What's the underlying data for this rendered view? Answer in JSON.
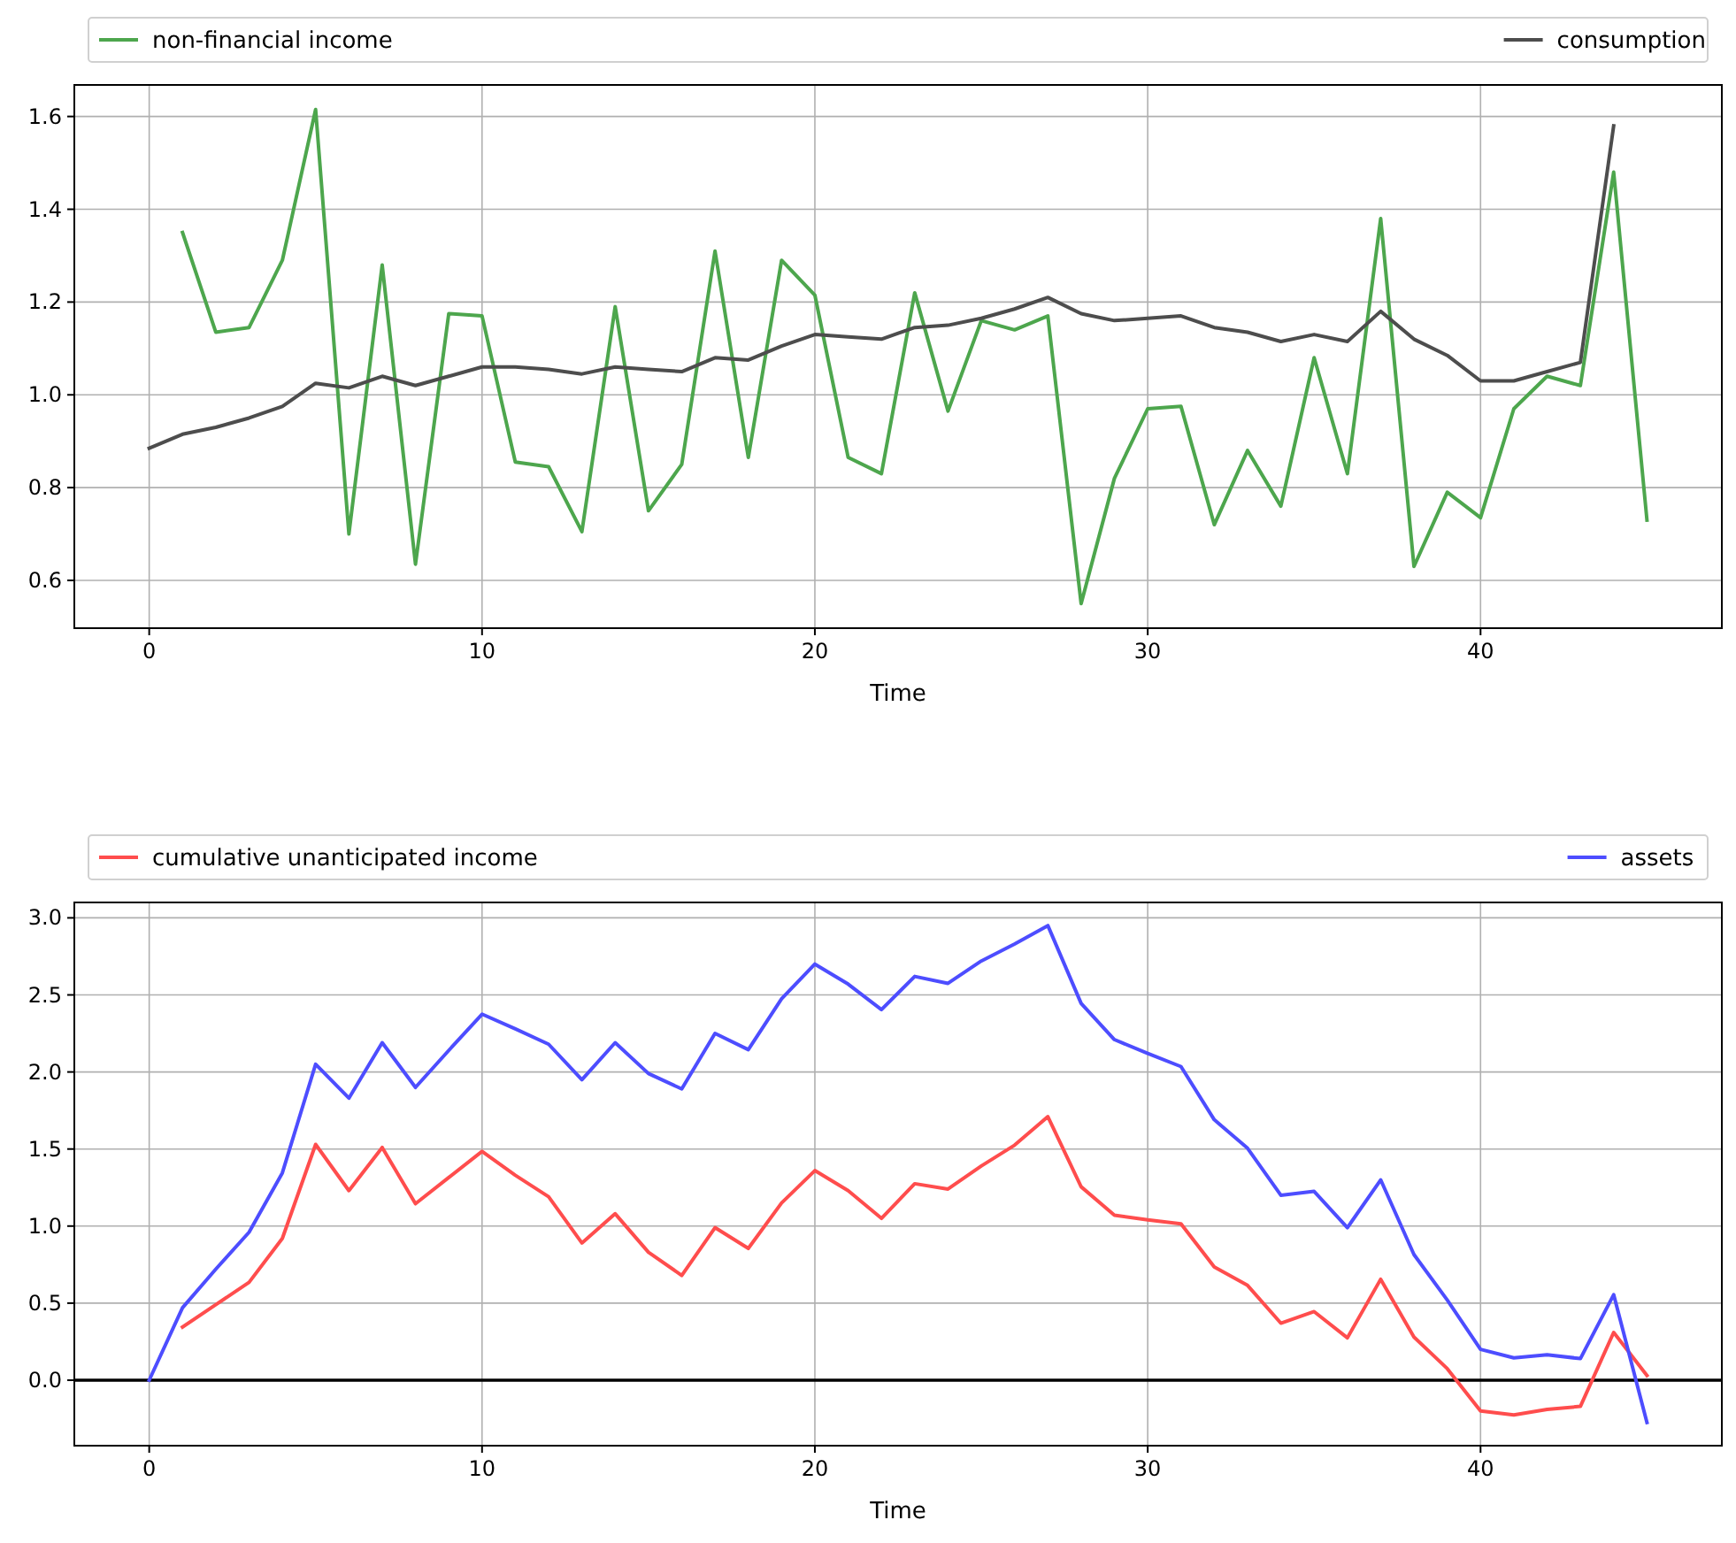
{
  "chart_data": [
    {
      "type": "line",
      "xlabel": "Time",
      "xlim": [
        -2.25,
        47.25
      ],
      "xticks": [
        0,
        10,
        20,
        30,
        40
      ],
      "ylim": [
        0.497,
        1.668
      ],
      "yticks": [
        {
          "value": 0.6,
          "label": "0.6"
        },
        {
          "value": 0.8,
          "label": "0.8"
        },
        {
          "value": 1.0,
          "label": "1.0"
        },
        {
          "value": 1.2,
          "label": "1.2"
        },
        {
          "value": 1.4,
          "label": "1.4"
        },
        {
          "value": 1.6,
          "label": "1.6"
        }
      ],
      "grid": true,
      "legend": "top",
      "series": [
        {
          "name": "non-financial income",
          "color": "#4da64d",
          "x": [
            1,
            2,
            3,
            4,
            5,
            6,
            7,
            8,
            9,
            10,
            11,
            12,
            13,
            14,
            15,
            16,
            17,
            18,
            19,
            20,
            21,
            22,
            23,
            24,
            25,
            26,
            27,
            28,
            29,
            30,
            31,
            32,
            33,
            34,
            35,
            36,
            37,
            38,
            39,
            40,
            41,
            42,
            43,
            44,
            45
          ],
          "values": [
            1.35,
            1.135,
            1.145,
            1.29,
            1.615,
            0.7,
            1.28,
            0.635,
            1.175,
            1.17,
            0.855,
            0.845,
            0.705,
            1.19,
            0.75,
            0.85,
            1.31,
            0.865,
            1.29,
            1.215,
            0.865,
            0.83,
            1.22,
            0.965,
            1.16,
            1.14,
            1.17,
            0.55,
            0.82,
            0.97,
            0.975,
            0.72,
            0.88,
            0.76,
            1.08,
            0.83,
            1.38,
            0.63,
            0.79,
            0.735,
            0.97,
            1.04,
            1.02,
            1.48,
            0.73
          ]
        },
        {
          "name": "consumption",
          "color": "#4d4d4d",
          "x": [
            0,
            1,
            2,
            3,
            4,
            5,
            6,
            7,
            8,
            9,
            10,
            11,
            12,
            13,
            14,
            15,
            16,
            17,
            18,
            19,
            20,
            21,
            22,
            23,
            24,
            25,
            26,
            27,
            28,
            29,
            30,
            31,
            32,
            33,
            34,
            35,
            36,
            37,
            38,
            39,
            40,
            41,
            42,
            43,
            44
          ],
          "values": [
            0.885,
            0.915,
            0.93,
            0.95,
            0.975,
            1.025,
            1.015,
            1.04,
            1.02,
            1.04,
            1.06,
            1.06,
            1.055,
            1.045,
            1.06,
            1.055,
            1.05,
            1.08,
            1.075,
            1.105,
            1.13,
            1.125,
            1.12,
            1.145,
            1.15,
            1.165,
            1.185,
            1.21,
            1.175,
            1.16,
            1.165,
            1.17,
            1.145,
            1.135,
            1.115,
            1.13,
            1.115,
            1.18,
            1.12,
            1.085,
            1.03,
            1.03,
            1.05,
            1.07,
            1.58
          ]
        }
      ]
    },
    {
      "type": "line",
      "xlabel": "Time",
      "xlim": [
        -2.25,
        47.25
      ],
      "xticks": [
        0,
        10,
        20,
        30,
        40
      ],
      "ylim": [
        -0.425,
        3.1
      ],
      "yticks": [
        {
          "value": 0,
          "label": "0.0"
        },
        {
          "value": 0.5,
          "label": "0.5"
        },
        {
          "value": 1.0,
          "label": "1.0"
        },
        {
          "value": 1.5,
          "label": "1.5"
        },
        {
          "value": 2.0,
          "label": "2.0"
        },
        {
          "value": 2.5,
          "label": "2.5"
        },
        {
          "value": 3.0,
          "label": "3.0"
        }
      ],
      "grid": true,
      "legend": "top",
      "ref_lines": [
        {
          "axis": "y",
          "value": 0,
          "color": "#000000"
        }
      ],
      "series": [
        {
          "name": "cumulative unanticipated income",
          "color": "#ff4d4d",
          "x": [
            1,
            2,
            3,
            4,
            5,
            6,
            7,
            8,
            9,
            10,
            11,
            12,
            13,
            14,
            15,
            16,
            17,
            18,
            19,
            20,
            21,
            22,
            23,
            24,
            25,
            26,
            27,
            28,
            29,
            30,
            31,
            32,
            33,
            34,
            35,
            36,
            37,
            38,
            39,
            40,
            41,
            42,
            43,
            44,
            45
          ],
          "values": [
            0.345,
            0.49,
            0.635,
            0.92,
            1.53,
            1.23,
            1.51,
            1.145,
            1.315,
            1.485,
            1.33,
            1.19,
            0.89,
            1.08,
            0.83,
            0.68,
            0.99,
            0.855,
            1.15,
            1.36,
            1.23,
            1.05,
            1.275,
            1.24,
            1.39,
            1.525,
            1.71,
            1.255,
            1.07,
            1.04,
            1.015,
            0.735,
            0.615,
            0.37,
            0.445,
            0.275,
            0.655,
            0.28,
            0.075,
            -0.2,
            -0.225,
            -0.19,
            -0.17,
            0.31,
            0.03
          ]
        },
        {
          "name": "assets",
          "color": "#4d4dff",
          "x": [
            0,
            1,
            2,
            3,
            4,
            5,
            6,
            7,
            8,
            9,
            10,
            11,
            12,
            13,
            14,
            15,
            16,
            17,
            18,
            19,
            20,
            21,
            22,
            23,
            24,
            25,
            26,
            27,
            28,
            29,
            30,
            31,
            32,
            33,
            34,
            35,
            36,
            37,
            38,
            39,
            40,
            41,
            42,
            43,
            44,
            45
          ],
          "values": [
            0,
            0.47,
            0.72,
            0.96,
            1.345,
            2.05,
            1.83,
            2.19,
            1.9,
            2.14,
            2.375,
            2.28,
            2.18,
            1.95,
            2.19,
            1.99,
            1.89,
            2.25,
            2.145,
            2.475,
            2.7,
            2.57,
            2.405,
            2.62,
            2.575,
            2.72,
            2.83,
            2.95,
            2.445,
            2.21,
            2.12,
            2.035,
            1.69,
            1.505,
            1.2,
            1.225,
            0.99,
            1.3,
            0.815,
            0.52,
            0.2,
            0.145,
            0.165,
            0.14,
            0.555,
            -0.275
          ]
        }
      ]
    }
  ]
}
